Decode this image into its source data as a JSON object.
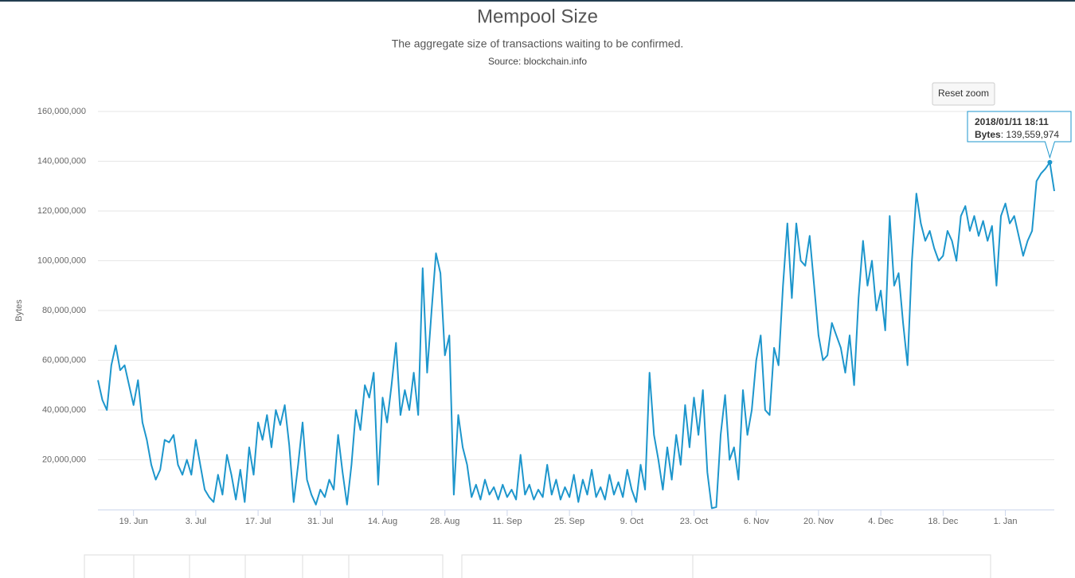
{
  "chart_data": {
    "type": "line",
    "title": "Mempool Size",
    "subtitle": "The aggregate size of transactions waiting to be confirmed.",
    "source": "Source: blockchain.info",
    "y_axis_title": "Bytes",
    "reset_button": "Reset zoom",
    "tooltip": {
      "x_label": "2018/01/11 18:11",
      "value_label": "139,559,974"
    },
    "xlim": [
      "2017-06-11",
      "2018-01-12"
    ],
    "ylim": [
      0,
      160000000
    ],
    "grid": true,
    "xticks": [
      {
        "value": "2017-06-19",
        "label": "19. Jun"
      },
      {
        "value": "2017-07-03",
        "label": "3. Jul"
      },
      {
        "value": "2017-07-17",
        "label": "17. Jul"
      },
      {
        "value": "2017-07-31",
        "label": "31. Jul"
      },
      {
        "value": "2017-08-14",
        "label": "14. Aug"
      },
      {
        "value": "2017-08-28",
        "label": "28. Aug"
      },
      {
        "value": "2017-09-11",
        "label": "11. Sep"
      },
      {
        "value": "2017-09-25",
        "label": "25. Sep"
      },
      {
        "value": "2017-10-09",
        "label": "9. Oct"
      },
      {
        "value": "2017-10-23",
        "label": "23. Oct"
      },
      {
        "value": "2017-11-06",
        "label": "6. Nov"
      },
      {
        "value": "2017-11-20",
        "label": "20. Nov"
      },
      {
        "value": "2017-12-04",
        "label": "4. Dec"
      },
      {
        "value": "2017-12-18",
        "label": "18. Dec"
      },
      {
        "value": "2018-01-01",
        "label": "1. Jan"
      }
    ],
    "yticks": [
      {
        "value": 20000000,
        "label": "20,000,000"
      },
      {
        "value": 40000000,
        "label": "40,000,000"
      },
      {
        "value": 60000000,
        "label": "60,000,000"
      },
      {
        "value": 80000000,
        "label": "80,000,000"
      },
      {
        "value": 100000000,
        "label": "100,000,000"
      },
      {
        "value": 120000000,
        "label": "120,000,000"
      },
      {
        "value": 140000000,
        "label": "140,000,000"
      },
      {
        "value": 160000000,
        "label": "160,000,000"
      }
    ],
    "x": [
      "2017-06-11",
      "2017-06-12",
      "2017-06-13",
      "2017-06-14",
      "2017-06-15",
      "2017-06-16",
      "2017-06-17",
      "2017-06-18",
      "2017-06-19",
      "2017-06-20",
      "2017-06-21",
      "2017-06-22",
      "2017-06-23",
      "2017-06-24",
      "2017-06-25",
      "2017-06-26",
      "2017-06-27",
      "2017-06-28",
      "2017-06-29",
      "2017-06-30",
      "2017-07-01",
      "2017-07-02",
      "2017-07-03",
      "2017-07-04",
      "2017-07-05",
      "2017-07-06",
      "2017-07-07",
      "2017-07-08",
      "2017-07-09",
      "2017-07-10",
      "2017-07-11",
      "2017-07-12",
      "2017-07-13",
      "2017-07-14",
      "2017-07-15",
      "2017-07-16",
      "2017-07-17",
      "2017-07-18",
      "2017-07-19",
      "2017-07-20",
      "2017-07-21",
      "2017-07-22",
      "2017-07-23",
      "2017-07-24",
      "2017-07-25",
      "2017-07-26",
      "2017-07-27",
      "2017-07-28",
      "2017-07-29",
      "2017-07-30",
      "2017-07-31",
      "2017-08-01",
      "2017-08-02",
      "2017-08-03",
      "2017-08-04",
      "2017-08-05",
      "2017-08-06",
      "2017-08-07",
      "2017-08-08",
      "2017-08-09",
      "2017-08-10",
      "2017-08-11",
      "2017-08-12",
      "2017-08-13",
      "2017-08-14",
      "2017-08-15",
      "2017-08-16",
      "2017-08-17",
      "2017-08-18",
      "2017-08-19",
      "2017-08-20",
      "2017-08-21",
      "2017-08-22",
      "2017-08-23",
      "2017-08-24",
      "2017-08-25",
      "2017-08-26",
      "2017-08-27",
      "2017-08-28",
      "2017-08-29",
      "2017-08-30",
      "2017-08-31",
      "2017-09-01",
      "2017-09-02",
      "2017-09-03",
      "2017-09-04",
      "2017-09-05",
      "2017-09-06",
      "2017-09-07",
      "2017-09-08",
      "2017-09-09",
      "2017-09-10",
      "2017-09-11",
      "2017-09-12",
      "2017-09-13",
      "2017-09-14",
      "2017-09-15",
      "2017-09-16",
      "2017-09-17",
      "2017-09-18",
      "2017-09-19",
      "2017-09-20",
      "2017-09-21",
      "2017-09-22",
      "2017-09-23",
      "2017-09-24",
      "2017-09-25",
      "2017-09-26",
      "2017-09-27",
      "2017-09-28",
      "2017-09-29",
      "2017-09-30",
      "2017-10-01",
      "2017-10-02",
      "2017-10-03",
      "2017-10-04",
      "2017-10-05",
      "2017-10-06",
      "2017-10-07",
      "2017-10-08",
      "2017-10-09",
      "2017-10-10",
      "2017-10-11",
      "2017-10-12",
      "2017-10-13",
      "2017-10-14",
      "2017-10-15",
      "2017-10-16",
      "2017-10-17",
      "2017-10-18",
      "2017-10-19",
      "2017-10-20",
      "2017-10-21",
      "2017-10-22",
      "2017-10-23",
      "2017-10-24",
      "2017-10-25",
      "2017-10-26",
      "2017-10-27",
      "2017-10-28",
      "2017-10-29",
      "2017-10-30",
      "2017-10-31",
      "2017-11-01",
      "2017-11-02",
      "2017-11-03",
      "2017-11-04",
      "2017-11-05",
      "2017-11-06",
      "2017-11-07",
      "2017-11-08",
      "2017-11-09",
      "2017-11-10",
      "2017-11-11",
      "2017-11-12",
      "2017-11-13",
      "2017-11-14",
      "2017-11-15",
      "2017-11-16",
      "2017-11-17",
      "2017-11-18",
      "2017-11-19",
      "2017-11-20",
      "2017-11-21",
      "2017-11-22",
      "2017-11-23",
      "2017-11-24",
      "2017-11-25",
      "2017-11-26",
      "2017-11-27",
      "2017-11-28",
      "2017-11-29",
      "2017-11-30",
      "2017-12-01",
      "2017-12-02",
      "2017-12-03",
      "2017-12-04",
      "2017-12-05",
      "2017-12-06",
      "2017-12-07",
      "2017-12-08",
      "2017-12-09",
      "2017-12-10",
      "2017-12-11",
      "2017-12-12",
      "2017-12-13",
      "2017-12-14",
      "2017-12-15",
      "2017-12-16",
      "2017-12-17",
      "2017-12-18",
      "2017-12-19",
      "2017-12-20",
      "2017-12-21",
      "2017-12-22",
      "2017-12-23",
      "2017-12-24",
      "2017-12-25",
      "2017-12-26",
      "2017-12-27",
      "2017-12-28",
      "2017-12-29",
      "2017-12-30",
      "2017-12-31",
      "2018-01-01",
      "2018-01-02",
      "2018-01-03",
      "2018-01-04",
      "2018-01-05",
      "2018-01-06",
      "2018-01-07",
      "2018-01-08",
      "2018-01-09",
      "2018-01-10",
      "2018-01-11",
      "2018-01-12"
    ],
    "series": [
      {
        "name": "Bytes",
        "color": "#1d96cc",
        "values": [
          52000000,
          44000000,
          40000000,
          58000000,
          66000000,
          56000000,
          58000000,
          50000000,
          42000000,
          52000000,
          35000000,
          28000000,
          18000000,
          12000000,
          16000000,
          28000000,
          27000000,
          30000000,
          18000000,
          14000000,
          20000000,
          14000000,
          28000000,
          18000000,
          8000000,
          5000000,
          3000000,
          14000000,
          6000000,
          22000000,
          14000000,
          4000000,
          16000000,
          3000000,
          25000000,
          14000000,
          35000000,
          28000000,
          38000000,
          25000000,
          40000000,
          34000000,
          42000000,
          26000000,
          3000000,
          18000000,
          35000000,
          12000000,
          6000000,
          2000000,
          8000000,
          5000000,
          12000000,
          8000000,
          30000000,
          15000000,
          2000000,
          18000000,
          40000000,
          32000000,
          50000000,
          45000000,
          55000000,
          10000000,
          45000000,
          35000000,
          50000000,
          67000000,
          38000000,
          48000000,
          40000000,
          55000000,
          38000000,
          97000000,
          55000000,
          80000000,
          103000000,
          95000000,
          62000000,
          70000000,
          6000000,
          38000000,
          25000000,
          18000000,
          5000000,
          10000000,
          4000000,
          12000000,
          6000000,
          9000000,
          4000000,
          10000000,
          5000000,
          8000000,
          4000000,
          22000000,
          6000000,
          10000000,
          4000000,
          8000000,
          5000000,
          18000000,
          6000000,
          12000000,
          4000000,
          9000000,
          5000000,
          14000000,
          3000000,
          12000000,
          6000000,
          16000000,
          5000000,
          9000000,
          4000000,
          14000000,
          6000000,
          11000000,
          5000000,
          16000000,
          8000000,
          3000000,
          18000000,
          8000000,
          55000000,
          30000000,
          20000000,
          8000000,
          25000000,
          12000000,
          30000000,
          18000000,
          42000000,
          25000000,
          45000000,
          30000000,
          48000000,
          15000000,
          500000,
          1000000,
          30000000,
          46000000,
          20000000,
          25000000,
          12000000,
          48000000,
          30000000,
          40000000,
          60000000,
          70000000,
          40000000,
          38000000,
          65000000,
          58000000,
          90000000,
          115000000,
          85000000,
          115000000,
          100000000,
          98000000,
          110000000,
          90000000,
          70000000,
          60000000,
          62000000,
          75000000,
          70000000,
          65000000,
          55000000,
          70000000,
          50000000,
          85000000,
          108000000,
          90000000,
          100000000,
          80000000,
          88000000,
          72000000,
          118000000,
          90000000,
          95000000,
          75000000,
          58000000,
          100000000,
          127000000,
          115000000,
          108000000,
          112000000,
          105000000,
          100000000,
          102000000,
          112000000,
          108000000,
          100000000,
          118000000,
          122000000,
          112000000,
          118000000,
          110000000,
          116000000,
          108000000,
          114000000,
          90000000,
          118000000,
          123000000,
          115000000,
          118000000,
          110000000,
          102000000,
          108000000,
          112000000,
          132000000,
          135000000,
          137000000,
          139559974,
          128000000
        ]
      }
    ]
  }
}
